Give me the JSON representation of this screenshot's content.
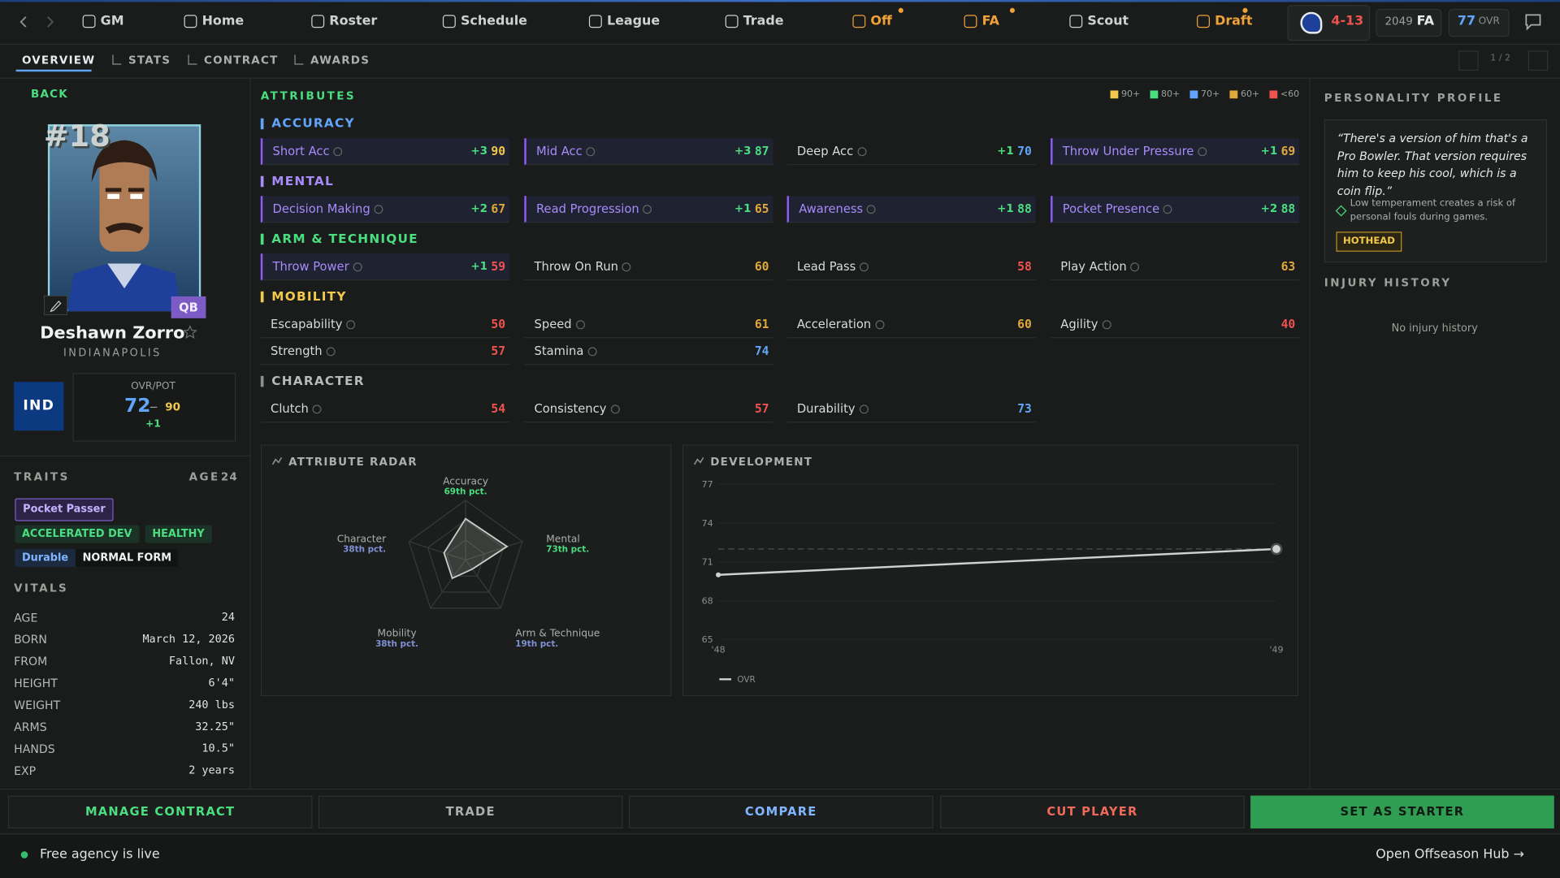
{
  "nav": {
    "items": [
      {
        "label": "GM",
        "alert": false
      },
      {
        "label": "Home",
        "alert": false
      },
      {
        "label": "Roster",
        "alert": false
      },
      {
        "label": "Schedule",
        "alert": false
      },
      {
        "label": "League",
        "alert": false
      },
      {
        "label": "Trade",
        "alert": false
      },
      {
        "label": "Off",
        "alert": true
      },
      {
        "label": "FA",
        "alert": true
      },
      {
        "label": "Scout",
        "alert": false
      },
      {
        "label": "Draft",
        "alert": true
      }
    ],
    "record": "4-13",
    "season": 2049,
    "phase": "FA",
    "ovr": 77,
    "ovr_label": "OVR"
  },
  "tabs": {
    "items": [
      "OVERVIEW",
      "STATS",
      "CONTRACT",
      "AWARDS"
    ],
    "pager": "1 / 2"
  },
  "player": {
    "back": "BACK",
    "number": "#18",
    "position": "QB",
    "name": "Deshawn Zorro",
    "hometown": "INDIANAPOLIS",
    "team": "IND",
    "ovr_pot_label": "OVR/POT",
    "ovr": 72,
    "pot": 90,
    "change": "+1"
  },
  "traits": {
    "title": "TRAITS",
    "age_label": "AGE",
    "age": 24,
    "tags": [
      {
        "label": "Pocket Passer",
        "style": "purple"
      },
      {
        "label": "ACCELERATED DEV",
        "style": "green"
      },
      {
        "label": "HEALTHY",
        "style": "green"
      },
      {
        "label": "Durable",
        "style": "blue"
      },
      {
        "label": "NORMAL FORM",
        "style": "plain"
      }
    ]
  },
  "vitals": {
    "title": "VITALS",
    "rows": [
      [
        "AGE",
        "24"
      ],
      [
        "BORN",
        "March 12, 2026"
      ],
      [
        "FROM",
        "Fallon, NV"
      ],
      [
        "HEIGHT",
        "6'4\""
      ],
      [
        "WEIGHT",
        "240 lbs"
      ],
      [
        "ARMS",
        "32.25\""
      ],
      [
        "HANDS",
        "10.5\""
      ],
      [
        "EXP",
        "2 years"
      ]
    ]
  },
  "attributes": {
    "title": "ATTRIBUTES",
    "legend": [
      {
        "label": "90+",
        "min": 90,
        "color": "#f2c94c"
      },
      {
        "label": "80+",
        "min": 80,
        "color": "#4ade80"
      },
      {
        "label": "70+",
        "min": 70,
        "color": "#60a5fa"
      },
      {
        "label": "60+",
        "min": 60,
        "color": "#e0a83a"
      },
      {
        "label": "<60",
        "max": 60,
        "color": "#ef5350"
      }
    ],
    "groups": [
      {
        "name": "ACCURACY",
        "color": "#60a5fa",
        "items": [
          {
            "name": "Short Acc",
            "delta": "+3",
            "value": 90,
            "key": true
          },
          {
            "name": "Mid Acc",
            "delta": "+3",
            "value": 87,
            "key": true
          },
          {
            "name": "Deep Acc",
            "delta": "+1",
            "value": 70,
            "key": false
          },
          {
            "name": "Throw Under Pressure",
            "delta": "+1",
            "value": 69,
            "key": true
          }
        ]
      },
      {
        "name": "MENTAL",
        "color": "#a78bfa",
        "items": [
          {
            "name": "Decision Making",
            "delta": "+2",
            "value": 67,
            "key": true
          },
          {
            "name": "Read Progression",
            "delta": "+1",
            "value": 65,
            "key": true
          },
          {
            "name": "Awareness",
            "delta": "+1",
            "value": 88,
            "key": true
          },
          {
            "name": "Pocket Presence",
            "delta": "+2",
            "value": 88,
            "key": true
          }
        ]
      },
      {
        "name": "ARM & TECHNIQUE",
        "color": "#4ade80",
        "items": [
          {
            "name": "Throw Power",
            "delta": "+1",
            "value": 59,
            "key": true
          },
          {
            "name": "Throw On Run",
            "value": 60,
            "key": false
          },
          {
            "name": "Lead Pass",
            "value": 58,
            "key": false
          },
          {
            "name": "Play Action",
            "value": 63,
            "key": false
          }
        ]
      },
      {
        "name": "MOBILITY",
        "color": "#f2c94c",
        "items": [
          {
            "name": "Escapability",
            "value": 50,
            "key": false
          },
          {
            "name": "Speed",
            "value": 61,
            "key": false
          },
          {
            "name": "Acceleration",
            "value": 60,
            "key": false
          },
          {
            "name": "Agility",
            "value": 40,
            "key": false
          },
          {
            "name": "Strength",
            "value": 57,
            "key": false
          },
          {
            "name": "Stamina",
            "value": 74,
            "key": false
          }
        ]
      },
      {
        "name": "CHARACTER",
        "color": "#8a918c",
        "items": [
          {
            "name": "Clutch",
            "value": 54,
            "key": false
          },
          {
            "name": "Consistency",
            "value": 57,
            "key": false
          },
          {
            "name": "Durability",
            "value": 73,
            "key": false
          }
        ]
      }
    ]
  },
  "chart_data": [
    {
      "type": "radar",
      "title": "ATTRIBUTE RADAR",
      "categories": [
        "Accuracy",
        "Mental",
        "Arm & Technique",
        "Mobility",
        "Character"
      ],
      "values": [
        69,
        73,
        19,
        38,
        38
      ],
      "value_labels": [
        "69th pct.",
        "73th pct.",
        "19th pct.",
        "38th pct.",
        "38th pct."
      ],
      "rlim": [
        0,
        100
      ],
      "color": "#c9cdc9"
    },
    {
      "type": "line",
      "title": "DEVELOPMENT",
      "categories": [
        "'48",
        "'49"
      ],
      "series": [
        {
          "name": "OVR",
          "color": "#cfd3cf",
          "values": [
            70,
            72
          ]
        }
      ],
      "reference_line": 72,
      "ylim": [
        65,
        77
      ],
      "yticks": [
        65,
        68,
        71,
        74,
        77
      ],
      "grid": true
    }
  ],
  "personality": {
    "title": "PERSONALITY PROFILE",
    "quote": "“There's a version of him that's a Pro Bowler. That version requires him to keep his cool, which is a coin flip.”",
    "note": "Low temperament creates a risk of personal fouls during games.",
    "tag": "HOTHEAD"
  },
  "injury": {
    "title": "INJURY HISTORY",
    "empty": "No injury history"
  },
  "actions": [
    {
      "label": "MANAGE CONTRACT",
      "style": "green"
    },
    {
      "label": "TRADE",
      "style": "gray"
    },
    {
      "label": "COMPARE",
      "style": "blue"
    },
    {
      "label": "CUT PLAYER",
      "style": "red"
    },
    {
      "label": "SET AS STARTER",
      "style": "primary"
    }
  ],
  "footer": {
    "status": "Free agency is live",
    "link": "Open Offseason Hub →"
  }
}
